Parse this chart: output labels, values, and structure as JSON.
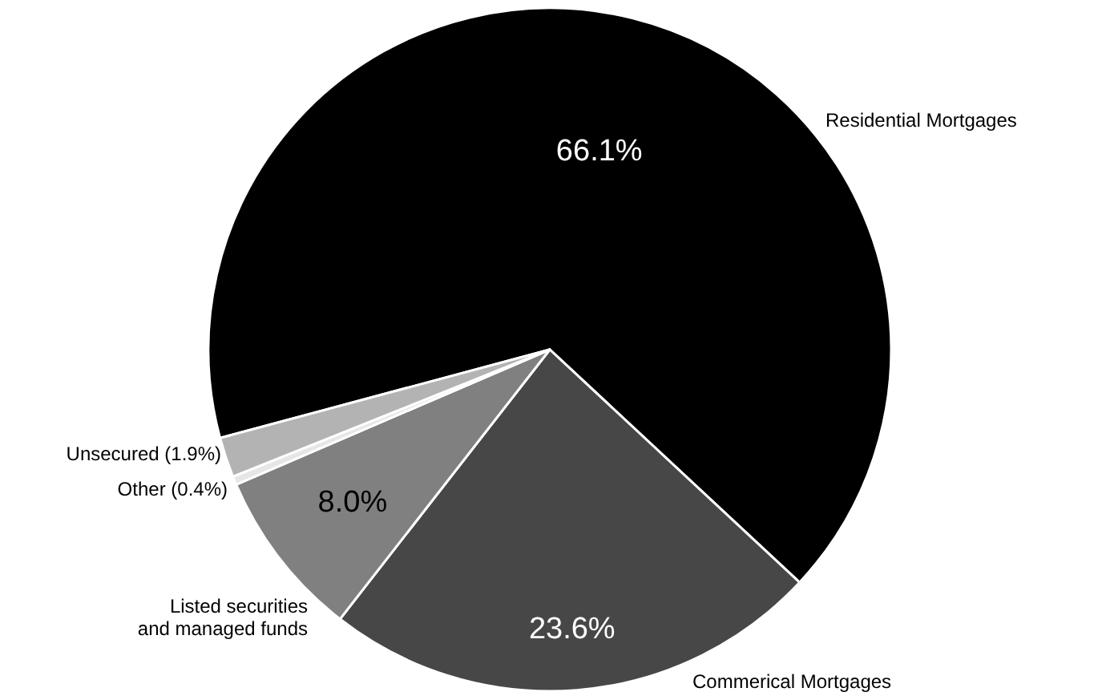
{
  "chart_data": {
    "type": "pie",
    "categories": [
      "Residential Mortgages",
      "Commerical Mortgages",
      "Listed securities\nand managed funds",
      "Other (0.4%)",
      "Unsecured (1.9%)"
    ],
    "values": [
      66.1,
      23.6,
      8.0,
      0.4,
      1.9
    ],
    "colors": [
      "#000000",
      "#474747",
      "#808080",
      "#e6e6e6",
      "#b3b3b3"
    ],
    "value_labels": [
      "66.1%",
      "23.6%",
      "8.0%",
      null,
      null
    ]
  }
}
